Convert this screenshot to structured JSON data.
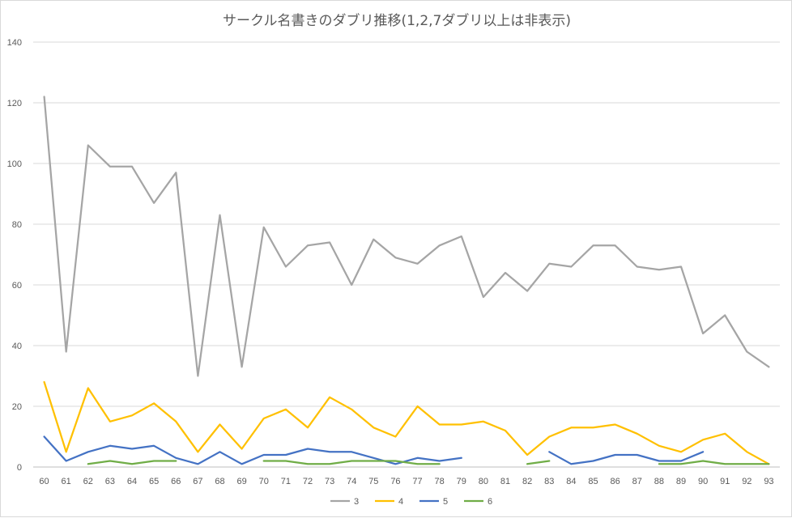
{
  "chart_data": {
    "type": "line",
    "title": "サークル名書きのダブリ推移(1,2,7ダブリ以上は非表示)",
    "xlabel": "",
    "ylabel": "",
    "ylim": [
      0,
      140
    ],
    "yticks": [
      0,
      20,
      40,
      60,
      80,
      100,
      120,
      140
    ],
    "grid": true,
    "legend_position": "bottom",
    "categories": [
      "60",
      "61",
      "62",
      "63",
      "64",
      "65",
      "66",
      "67",
      "68",
      "69",
      "70",
      "71",
      "72",
      "73",
      "74",
      "75",
      "76",
      "77",
      "78",
      "79",
      "80",
      "81",
      "82",
      "83",
      "84",
      "85",
      "86",
      "87",
      "88",
      "89",
      "90",
      "91",
      "92",
      "93"
    ],
    "series": [
      {
        "name": "3",
        "color": "#a5a5a5",
        "values": [
          122,
          38,
          106,
          99,
          99,
          87,
          97,
          30,
          83,
          33,
          79,
          66,
          73,
          74,
          60,
          75,
          69,
          67,
          73,
          76,
          56,
          64,
          58,
          67,
          66,
          73,
          73,
          66,
          65,
          66,
          44,
          50,
          38,
          33
        ]
      },
      {
        "name": "4",
        "color": "#ffc000",
        "values": [
          28,
          5,
          26,
          15,
          17,
          21,
          15,
          5,
          14,
          6,
          16,
          19,
          13,
          23,
          19,
          13,
          10,
          20,
          14,
          14,
          15,
          12,
          4,
          10,
          13,
          13,
          14,
          11,
          7,
          5,
          9,
          11,
          5,
          1
        ]
      },
      {
        "name": "5",
        "color": "#4472c4",
        "values": [
          10,
          2,
          5,
          7,
          6,
          7,
          3,
          1,
          5,
          1,
          4,
          4,
          6,
          5,
          5,
          3,
          1,
          3,
          2,
          3,
          null,
          null,
          null,
          5,
          1,
          2,
          4,
          4,
          2,
          2,
          5,
          null,
          null,
          null
        ]
      },
      {
        "name": "6",
        "color": "#70ad47",
        "values": [
          null,
          null,
          1,
          2,
          1,
          2,
          2,
          null,
          null,
          null,
          2,
          2,
          1,
          1,
          2,
          2,
          2,
          1,
          1,
          null,
          null,
          null,
          1,
          2,
          null,
          null,
          null,
          null,
          1,
          1,
          2,
          1,
          1,
          1
        ]
      }
    ]
  }
}
